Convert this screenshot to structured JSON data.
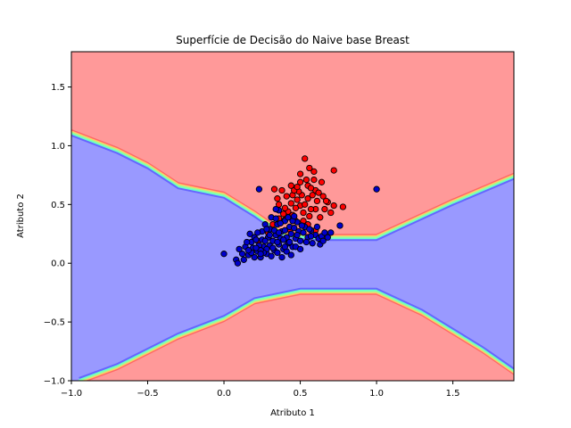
{
  "chart_data": {
    "type": "scatter",
    "title": "Superfície de Decisão do Naive base Breast",
    "xlabel": "Atributo 1",
    "ylabel": "Atributo 2",
    "xlim": [
      -1.0,
      1.9
    ],
    "ylim": [
      -1.0,
      1.8
    ],
    "xticks": [
      "−1.0",
      "−0.5",
      "0.0",
      "0.5",
      "1.0",
      "1.5"
    ],
    "yticks": [
      "−1.0",
      "−0.5",
      "0.0",
      "0.5",
      "1.0",
      "1.5"
    ],
    "grid": false,
    "legend": "none",
    "colors": {
      "region_class_1": "#ff9999",
      "region_class_0": "#9999ff",
      "boundary_band": "#99ff99",
      "point_class_1": "#ff0000",
      "point_class_0": "#0000cc",
      "point_edge": "#000000"
    },
    "decision_boundaries": {
      "upper_boundary": [
        [
          -1.0,
          1.11
        ],
        [
          -0.7,
          0.96
        ],
        [
          -0.5,
          0.83
        ],
        [
          -0.3,
          0.66
        ],
        [
          0.0,
          0.58
        ],
        [
          0.2,
          0.42
        ],
        [
          0.4,
          0.24
        ],
        [
          0.6,
          0.22
        ],
        [
          1.0,
          0.22
        ],
        [
          1.2,
          0.34
        ],
        [
          1.5,
          0.52
        ],
        [
          1.9,
          0.74
        ]
      ],
      "lower_boundary": [
        [
          -0.95,
          -1.0
        ],
        [
          -0.7,
          -0.88
        ],
        [
          -0.3,
          -0.62
        ],
        [
          0.0,
          -0.47
        ],
        [
          0.2,
          -0.32
        ],
        [
          0.5,
          -0.24
        ],
        [
          1.0,
          -0.24
        ],
        [
          1.3,
          -0.42
        ],
        [
          1.5,
          -0.58
        ],
        [
          1.7,
          -0.74
        ],
        [
          1.9,
          -0.92
        ]
      ]
    },
    "series": [
      {
        "class": 1,
        "points": [
          [
            0.53,
            0.89
          ],
          [
            0.56,
            0.81
          ],
          [
            0.72,
            0.79
          ],
          [
            0.5,
            0.76
          ],
          [
            0.59,
            0.78
          ],
          [
            0.64,
            0.69
          ],
          [
            0.59,
            0.71
          ],
          [
            0.55,
            0.66
          ],
          [
            0.6,
            0.62
          ],
          [
            0.5,
            0.69
          ],
          [
            0.44,
            0.66
          ],
          [
            0.38,
            0.62
          ],
          [
            0.33,
            0.63
          ],
          [
            0.45,
            0.58
          ],
          [
            0.57,
            0.64
          ],
          [
            0.62,
            0.6
          ],
          [
            0.65,
            0.57
          ],
          [
            0.68,
            0.52
          ],
          [
            0.72,
            0.49
          ],
          [
            0.78,
            0.48
          ],
          [
            0.7,
            0.43
          ],
          [
            0.66,
            0.46
          ],
          [
            0.55,
            0.55
          ],
          [
            0.5,
            0.49
          ],
          [
            0.47,
            0.47
          ],
          [
            0.44,
            0.51
          ],
          [
            0.42,
            0.44
          ],
          [
            0.4,
            0.47
          ],
          [
            0.36,
            0.5
          ],
          [
            0.36,
            0.38
          ],
          [
            0.4,
            0.37
          ],
          [
            0.52,
            0.43
          ],
          [
            0.56,
            0.4
          ],
          [
            0.6,
            0.46
          ],
          [
            0.55,
            0.33
          ],
          [
            0.6,
            0.28
          ],
          [
            0.47,
            0.36
          ],
          [
            0.32,
            0.33
          ],
          [
            0.29,
            0.26
          ],
          [
            0.22,
            0.19
          ],
          [
            0.51,
            0.58
          ],
          [
            0.53,
            0.5
          ],
          [
            0.48,
            0.54
          ],
          [
            0.57,
            0.46
          ],
          [
            0.52,
            0.36
          ],
          [
            0.45,
            0.41
          ],
          [
            0.67,
            0.53
          ],
          [
            0.61,
            0.53
          ],
          [
            0.49,
            0.61
          ],
          [
            0.35,
            0.55
          ],
          [
            0.43,
            0.29
          ],
          [
            0.63,
            0.39
          ],
          [
            0.58,
            0.58
          ],
          [
            0.46,
            0.62
          ],
          [
            0.54,
            0.71
          ],
          [
            0.48,
            0.65
          ],
          [
            0.41,
            0.57
          ],
          [
            0.39,
            0.42
          ]
        ],
        "fill": "#ff0000"
      },
      {
        "class": 0,
        "points": [
          [
            1.0,
            0.63
          ],
          [
            0.23,
            0.63
          ],
          [
            0.0,
            0.08
          ],
          [
            0.08,
            0.03
          ],
          [
            0.09,
            0.0
          ],
          [
            0.12,
            0.08
          ],
          [
            0.1,
            0.12
          ],
          [
            0.14,
            0.14
          ],
          [
            0.16,
            0.07
          ],
          [
            0.18,
            0.18
          ],
          [
            0.2,
            0.22
          ],
          [
            0.22,
            0.1
          ],
          [
            0.24,
            0.05
          ],
          [
            0.25,
            0.2
          ],
          [
            0.26,
            0.14
          ],
          [
            0.28,
            0.08
          ],
          [
            0.3,
            0.15
          ],
          [
            0.3,
            0.29
          ],
          [
            0.32,
            0.19
          ],
          [
            0.33,
            0.11
          ],
          [
            0.34,
            0.24
          ],
          [
            0.35,
            0.33
          ],
          [
            0.36,
            0.16
          ],
          [
            0.37,
            0.21
          ],
          [
            0.38,
            0.27
          ],
          [
            0.39,
            0.12
          ],
          [
            0.4,
            0.36
          ],
          [
            0.41,
            0.22
          ],
          [
            0.42,
            0.17
          ],
          [
            0.43,
            0.31
          ],
          [
            0.44,
            0.25
          ],
          [
            0.45,
            0.14
          ],
          [
            0.46,
            0.3
          ],
          [
            0.47,
            0.21
          ],
          [
            0.48,
            0.35
          ],
          [
            0.49,
            0.27
          ],
          [
            0.5,
            0.19
          ],
          [
            0.52,
            0.26
          ],
          [
            0.53,
            0.31
          ],
          [
            0.55,
            0.22
          ],
          [
            0.57,
            0.28
          ],
          [
            0.6,
            0.24
          ],
          [
            0.62,
            0.21
          ],
          [
            0.64,
            0.23
          ],
          [
            0.66,
            0.26
          ],
          [
            0.76,
            0.32
          ],
          [
            0.7,
            0.26
          ],
          [
            0.36,
            0.45
          ],
          [
            0.34,
            0.46
          ],
          [
            0.31,
            0.39
          ],
          [
            0.27,
            0.33
          ],
          [
            0.25,
            0.27
          ],
          [
            0.21,
            0.2
          ],
          [
            0.19,
            0.13
          ],
          [
            0.17,
            0.25
          ],
          [
            0.15,
            0.18
          ],
          [
            0.2,
            0.05
          ],
          [
            0.23,
            0.15
          ],
          [
            0.29,
            0.22
          ],
          [
            0.31,
            0.06
          ],
          [
            0.35,
            0.09
          ],
          [
            0.38,
            0.05
          ],
          [
            0.41,
            0.1
          ],
          [
            0.44,
            0.07
          ],
          [
            0.47,
            0.14
          ],
          [
            0.5,
            0.12
          ],
          [
            0.39,
            0.2
          ],
          [
            0.33,
            0.28
          ],
          [
            0.28,
            0.12
          ],
          [
            0.26,
            0.09
          ],
          [
            0.36,
            0.26
          ],
          [
            0.42,
            0.39
          ],
          [
            0.45,
            0.36
          ],
          [
            0.54,
            0.18
          ],
          [
            0.58,
            0.17
          ],
          [
            0.63,
            0.16
          ],
          [
            0.4,
            0.28
          ],
          [
            0.37,
            0.34
          ],
          [
            0.3,
            0.24
          ],
          [
            0.24,
            0.11
          ],
          [
            0.22,
            0.26
          ],
          [
            0.18,
            0.09
          ],
          [
            0.13,
            0.03
          ],
          [
            0.27,
            0.19
          ],
          [
            0.35,
            0.18
          ],
          [
            0.48,
            0.24
          ],
          [
            0.51,
            0.32
          ],
          [
            0.43,
            0.18
          ],
          [
            0.46,
            0.4
          ],
          [
            0.56,
            0.29
          ],
          [
            0.61,
            0.31
          ],
          [
            0.34,
            0.38
          ],
          [
            0.28,
            0.29
          ],
          [
            0.32,
            0.13
          ],
          [
            0.4,
            0.14
          ],
          [
            0.57,
            0.23
          ],
          [
            0.65,
            0.19
          ],
          [
            0.68,
            0.22
          ],
          [
            0.24,
            0.08
          ],
          [
            0.21,
            0.13
          ],
          [
            0.16,
            0.11
          ]
        ],
        "fill": "#0000cc"
      }
    ]
  }
}
